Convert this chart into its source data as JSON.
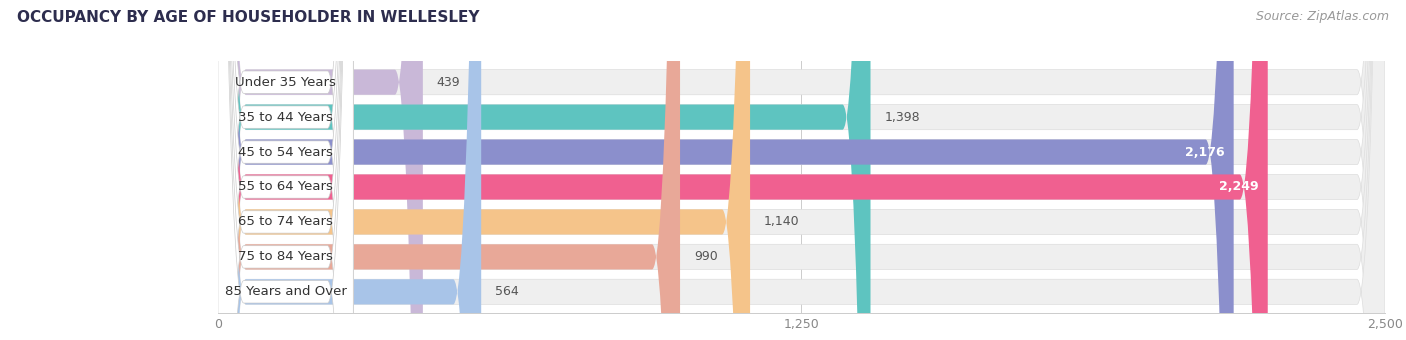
{
  "title": "OCCUPANCY BY AGE OF HOUSEHOLDER IN WELLESLEY",
  "source": "Source: ZipAtlas.com",
  "categories": [
    "Under 35 Years",
    "35 to 44 Years",
    "45 to 54 Years",
    "55 to 64 Years",
    "65 to 74 Years",
    "75 to 84 Years",
    "85 Years and Over"
  ],
  "values": [
    439,
    1398,
    2176,
    2249,
    1140,
    990,
    564
  ],
  "bar_colors": [
    "#c9b8d8",
    "#5ec4c0",
    "#8b8fcc",
    "#f06090",
    "#f5c48a",
    "#e8a898",
    "#a8c4e8"
  ],
  "bar_bg_color": "#e8e8e8",
  "xlim": [
    0,
    2500
  ],
  "xticks": [
    0,
    1250,
    2500
  ],
  "xtick_labels": [
    "0",
    "1,250",
    "2,500"
  ],
  "title_fontsize": 11,
  "source_fontsize": 9,
  "label_fontsize": 9.5,
  "value_fontsize": 9,
  "background_color": "#ffffff",
  "bar_height": 0.72,
  "bar_gap": 1.0
}
